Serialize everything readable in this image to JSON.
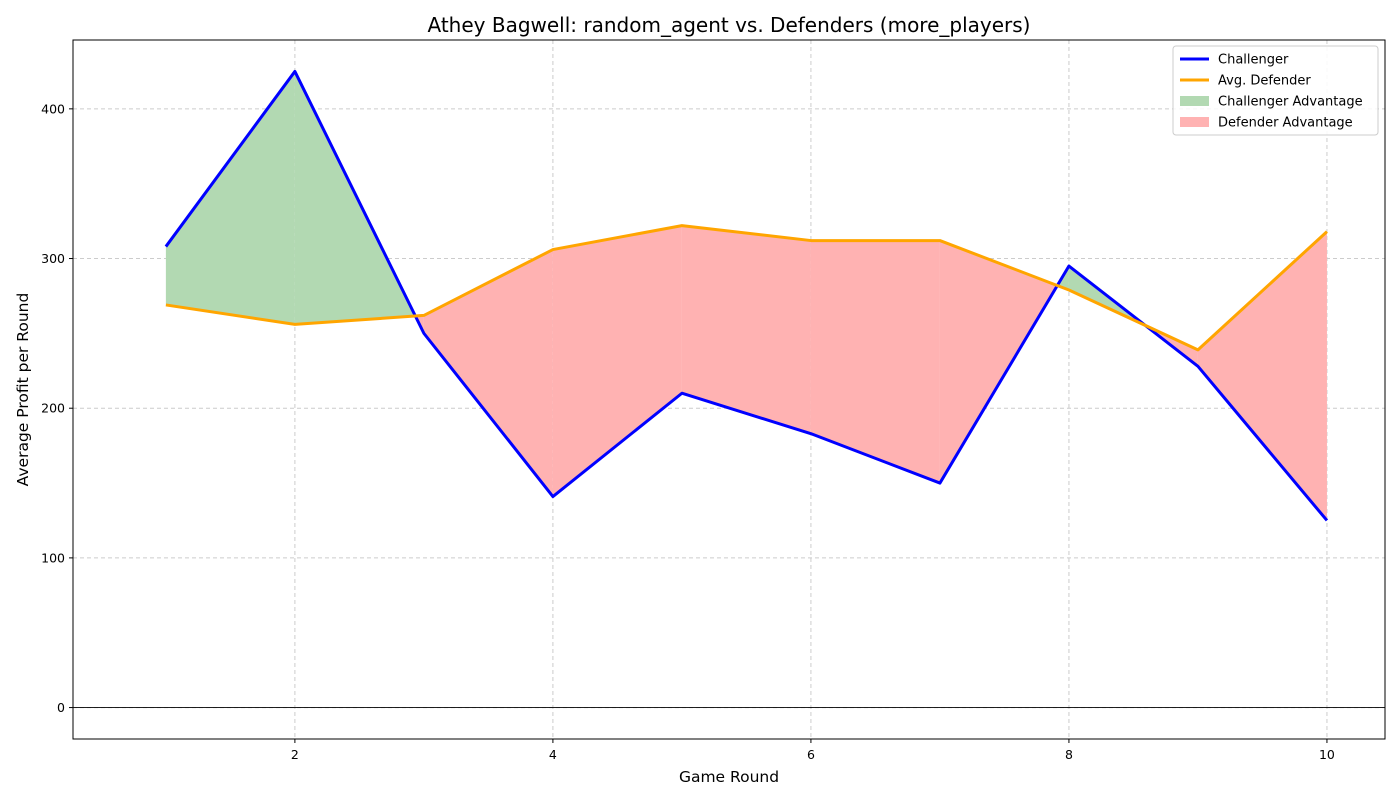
{
  "chart_data": {
    "type": "line",
    "title": "Athey Bagwell: random_agent vs. Defenders (more_players)",
    "xlabel": "Game Round",
    "ylabel": "Average Profit per Round",
    "x": [
      1,
      2,
      3,
      4,
      5,
      6,
      7,
      8,
      9,
      10
    ],
    "xlim": [
      0.28,
      10.45
    ],
    "ylim": [
      -21,
      446
    ],
    "xticks": [
      2,
      4,
      6,
      8,
      10
    ],
    "yticks": [
      0,
      100,
      200,
      300,
      400
    ],
    "grid": true,
    "grid_style": "dashed",
    "zero_line": true,
    "legend_position": "top-right",
    "series": [
      {
        "name": "Challenger",
        "color": "#0000ff",
        "values": [
          308,
          425,
          250,
          141,
          210,
          183,
          150,
          295,
          228,
          125
        ]
      },
      {
        "name": "Avg. Defender",
        "color": "#ffa500",
        "values": [
          269,
          256,
          262,
          306,
          322,
          312,
          312,
          279,
          239,
          318
        ]
      }
    ],
    "fill_regions": [
      {
        "name": "Challenger Advantage",
        "color": "#b2d9b2",
        "condition": "Challenger > Avg. Defender"
      },
      {
        "name": "Defender Advantage",
        "color": "#ffb2b2",
        "condition": "Challenger < Avg. Defender"
      }
    ]
  }
}
